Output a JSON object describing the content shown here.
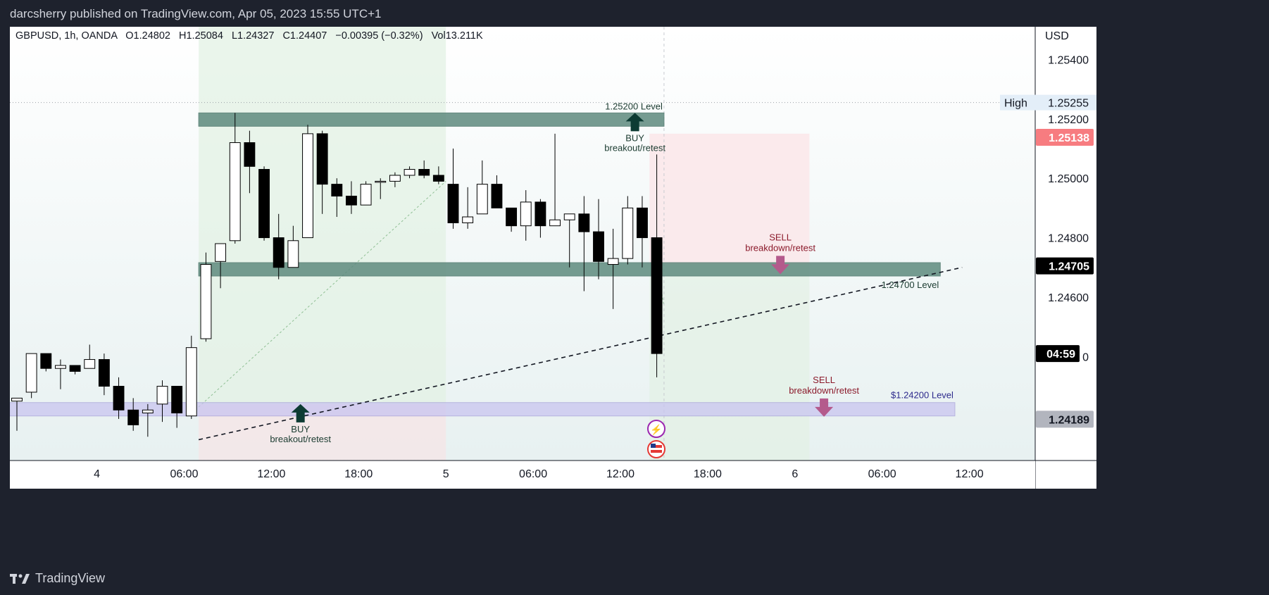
{
  "header": {
    "publisher_line": "darcsherry published on TradingView.com, Apr 05, 2023 15:55 UTC+1"
  },
  "footer": {
    "brand": "TradingView"
  },
  "chart_data": {
    "type": "candlestick",
    "symbol_line": "GBPUSD, 1h, OANDA",
    "ohlc_line": {
      "o": "O1.24802",
      "h": "H1.25084",
      "l": "L1.24327",
      "c": "C1.24407",
      "chg": "−0.00395 (−0.32%)",
      "vol": "Vol13.211K"
    },
    "currency": "USD",
    "y_ticks": [
      "1.25400",
      "1.25200",
      "1.25000",
      "1.24800",
      "1.24600",
      "0"
    ],
    "y_tick_values": [
      1.254,
      1.252,
      1.25,
      1.248,
      1.246,
      1.244
    ],
    "x_ticks": [
      "4",
      "06:00",
      "12:00",
      "18:00",
      "5",
      "06:00",
      "12:00",
      "18:00",
      "6",
      "06:00",
      "12:00"
    ],
    "x_tick_index": [
      5.5,
      11.5,
      17.5,
      23.5,
      29.5,
      35.5,
      41.5,
      47.5,
      53.5,
      59.5,
      65.5
    ],
    "candles": [
      {
        "o": 1.2425,
        "h": 1.2426,
        "l": 1.2415,
        "c": 1.2426
      },
      {
        "o": 1.2428,
        "h": 1.2441,
        "l": 1.2426,
        "c": 1.2441
      },
      {
        "o": 1.2441,
        "h": 1.2441,
        "l": 1.2435,
        "c": 1.2436
      },
      {
        "o": 1.2436,
        "h": 1.2439,
        "l": 1.2429,
        "c": 1.2437
      },
      {
        "o": 1.2437,
        "h": 1.2437,
        "l": 1.2434,
        "c": 1.2435
      },
      {
        "o": 1.2436,
        "h": 1.2444,
        "l": 1.2436,
        "c": 1.2439
      },
      {
        "o": 1.2439,
        "h": 1.2441,
        "l": 1.2427,
        "c": 1.243
      },
      {
        "o": 1.243,
        "h": 1.2433,
        "l": 1.2419,
        "c": 1.2422
      },
      {
        "o": 1.2422,
        "h": 1.2426,
        "l": 1.2415,
        "c": 1.2417
      },
      {
        "o": 1.2421,
        "h": 1.2424,
        "l": 1.2413,
        "c": 1.2422
      },
      {
        "o": 1.2424,
        "h": 1.2432,
        "l": 1.2418,
        "c": 1.243
      },
      {
        "o": 1.243,
        "h": 1.243,
        "l": 1.2416,
        "c": 1.2421
      },
      {
        "o": 1.242,
        "h": 1.2447,
        "l": 1.2419,
        "c": 1.2443
      },
      {
        "o": 1.2446,
        "h": 1.2475,
        "l": 1.2445,
        "c": 1.2471
      },
      {
        "o": 1.2472,
        "h": 1.2478,
        "l": 1.2463,
        "c": 1.2478
      },
      {
        "o": 1.2479,
        "h": 1.2522,
        "l": 1.2478,
        "c": 1.2512
      },
      {
        "o": 1.2512,
        "h": 1.2516,
        "l": 1.2495,
        "c": 1.2504
      },
      {
        "o": 1.2503,
        "h": 1.2504,
        "l": 1.2479,
        "c": 1.248
      },
      {
        "o": 1.248,
        "h": 1.2488,
        "l": 1.2466,
        "c": 1.247
      },
      {
        "o": 1.247,
        "h": 1.2484,
        "l": 1.247,
        "c": 1.2479
      },
      {
        "o": 1.248,
        "h": 1.2518,
        "l": 1.248,
        "c": 1.2515
      },
      {
        "o": 1.2515,
        "h": 1.2516,
        "l": 1.2488,
        "c": 1.2498
      },
      {
        "o": 1.2498,
        "h": 1.25,
        "l": 1.2487,
        "c": 1.2494
      },
      {
        "o": 1.2494,
        "h": 1.2499,
        "l": 1.2488,
        "c": 1.2491
      },
      {
        "o": 1.2491,
        "h": 1.2499,
        "l": 1.2491,
        "c": 1.2498
      },
      {
        "o": 1.2499,
        "h": 1.25,
        "l": 1.2493,
        "c": 1.2499
      },
      {
        "o": 1.2499,
        "h": 1.2502,
        "l": 1.2497,
        "c": 1.2501
      },
      {
        "o": 1.2501,
        "h": 1.2504,
        "l": 1.25,
        "c": 1.2503
      },
      {
        "o": 1.2503,
        "h": 1.2506,
        "l": 1.25,
        "c": 1.2501
      },
      {
        "o": 1.2501,
        "h": 1.2504,
        "l": 1.2498,
        "c": 1.2499
      },
      {
        "o": 1.2498,
        "h": 1.251,
        "l": 1.2483,
        "c": 1.2485
      },
      {
        "o": 1.2485,
        "h": 1.2497,
        "l": 1.2483,
        "c": 1.2487
      },
      {
        "o": 1.2488,
        "h": 1.2506,
        "l": 1.2488,
        "c": 1.2498
      },
      {
        "o": 1.2498,
        "h": 1.2501,
        "l": 1.249,
        "c": 1.249
      },
      {
        "o": 1.249,
        "h": 1.249,
        "l": 1.2482,
        "c": 1.2484
      },
      {
        "o": 1.2484,
        "h": 1.2496,
        "l": 1.2479,
        "c": 1.2492
      },
      {
        "o": 1.2492,
        "h": 1.2493,
        "l": 1.248,
        "c": 1.2484
      },
      {
        "o": 1.2484,
        "h": 1.2515,
        "l": 1.2484,
        "c": 1.2486
      },
      {
        "o": 1.2486,
        "h": 1.2488,
        "l": 1.247,
        "c": 1.2488
      },
      {
        "o": 1.2488,
        "h": 1.2494,
        "l": 1.2462,
        "c": 1.2482
      },
      {
        "o": 1.2482,
        "h": 1.2493,
        "l": 1.2466,
        "c": 1.2472
      },
      {
        "o": 1.2471,
        "h": 1.2483,
        "l": 1.2456,
        "c": 1.2473
      },
      {
        "o": 1.2473,
        "h": 1.2494,
        "l": 1.2471,
        "c": 1.249
      },
      {
        "o": 1.249,
        "h": 1.2494,
        "l": 1.247,
        "c": 1.248
      },
      {
        "o": 1.248,
        "h": 1.2508,
        "l": 1.2433,
        "c": 1.2441
      }
    ],
    "levels": [
      {
        "label": "1.25200 Level",
        "top": 1.2522,
        "bottom": 1.25175,
        "from_idx": 12.5,
        "to_idx": 44.5
      },
      {
        "label": "1.24700 Level",
        "top": 1.24716,
        "bottom": 1.24671,
        "from_idx": 12.5,
        "to_idx": 63.5
      },
      {
        "label": "$1.24200 Level",
        "top": 1.24245,
        "bottom": 1.242,
        "from_idx": -0.5,
        "to_idx": 64.5
      }
    ],
    "annotations": [
      {
        "title": "BUY",
        "sub": "breakout/retest",
        "idx": 42.5,
        "value": 1.2522,
        "dir": "up",
        "color": "#0d3b33"
      },
      {
        "title": "SELL",
        "sub": "breakdown/retest",
        "idx": 52.5,
        "value": 1.2472,
        "dir": "down",
        "color": "#8b1a2b"
      },
      {
        "title": "BUY",
        "sub": "breakout/retest",
        "idx": 19.5,
        "value": 1.2424,
        "dir": "up",
        "color": "#0d3b33"
      },
      {
        "title": "SELL",
        "sub": "breakdown/retest",
        "idx": 55.5,
        "value": 1.2424,
        "dir": "down",
        "color": "#8b1a2b"
      }
    ],
    "trendline": {
      "from": {
        "idx": 12.5,
        "value": 1.2412
      },
      "to": {
        "idx": 65,
        "value": 1.247
      }
    },
    "high_label": {
      "text": "High",
      "value": "1.25255"
    },
    "price_labels": [
      {
        "text": "1.25138",
        "value": 1.25138,
        "color": "#f77c80",
        "fg": "#ffffff"
      },
      {
        "text": "1.24705",
        "value": 1.24705,
        "color": "#000000",
        "fg": "#ffffff"
      },
      {
        "text": "04:59",
        "value": 1.2441,
        "color": "#000000",
        "fg": "#ffffff"
      },
      {
        "text": "1.24189",
        "value": 1.24189,
        "color": "#b2b5be",
        "fg": "#131722"
      }
    ],
    "colors": {
      "background_top": "#ffffff",
      "background_bottom": "#e6f0f0",
      "up": "#ffffff",
      "down": "#000000",
      "level_band": "#5f8b7f",
      "level_band_purple": "#c9c5f0",
      "buy_zone": "#e7f5e9",
      "sell_zone": "#fce8ea",
      "label_text": "#1b3b30"
    }
  }
}
